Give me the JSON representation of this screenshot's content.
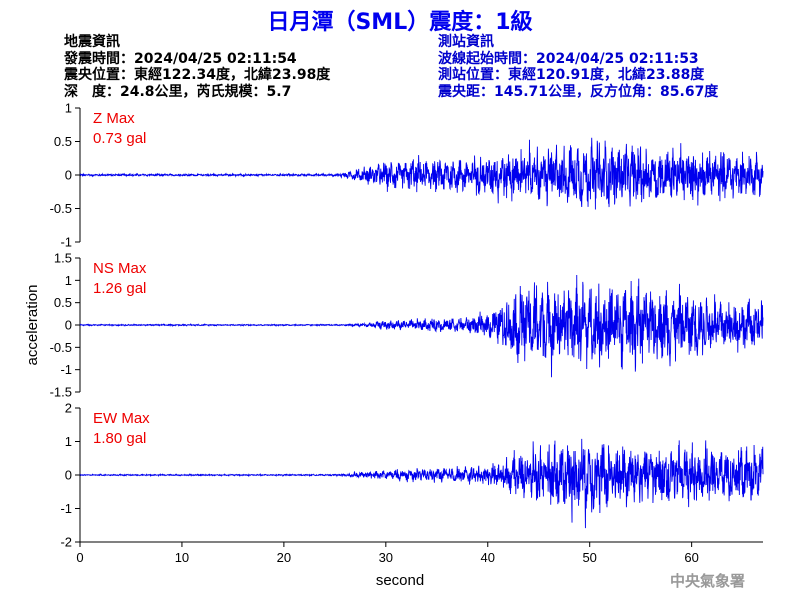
{
  "title": "日月潭（SML）震度：1級",
  "event_info": {
    "heading": "地震資訊",
    "origin_time": "發震時間：2024/04/25 02:11:54",
    "epicenter": "震央位置：東經122.34度，北緯23.98度",
    "depth_magnitude": "深　度：24.8公里，芮氏規模：5.7"
  },
  "station_info": {
    "heading": "測站資訊",
    "wave_start": "波線起始時間：2024/04/25 02:11:53",
    "location": "測站位置：東經120.91度，北緯23.88度",
    "distance_azimuth": "震央距：145.71公里，反方位角：85.67度"
  },
  "colors": {
    "trace": "#0000ee",
    "max_label": "#ee0000",
    "title": "#0000ee",
    "axis": "#000000"
  },
  "credit": "中央氣象署",
  "chart_data": {
    "type": "line",
    "xlabel": "second",
    "ylabel": "acceleration",
    "xlim": [
      0,
      67
    ],
    "xticks": [
      0,
      10,
      20,
      30,
      40,
      50,
      60
    ],
    "panels": [
      {
        "component": "Z",
        "max_label": "Z Max",
        "max_value": "0.73 gal",
        "ylim": [
          -1,
          1
        ],
        "yticks": [
          -1,
          -0.5,
          0,
          0.5,
          1
        ],
        "envelope": [
          {
            "t": 0,
            "amp": 0.015
          },
          {
            "t": 25,
            "amp": 0.015
          },
          {
            "t": 26,
            "amp": 0.05
          },
          {
            "t": 28,
            "amp": 0.12
          },
          {
            "t": 30,
            "amp": 0.22
          },
          {
            "t": 35,
            "amp": 0.25
          },
          {
            "t": 40,
            "amp": 0.3
          },
          {
            "t": 43,
            "amp": 0.4
          },
          {
            "t": 47,
            "amp": 0.45
          },
          {
            "t": 50,
            "amp": 0.5
          },
          {
            "t": 53,
            "amp": 0.5
          },
          {
            "t": 58,
            "amp": 0.42
          },
          {
            "t": 63,
            "amp": 0.38
          },
          {
            "t": 67,
            "amp": 0.3
          }
        ]
      },
      {
        "component": "NS",
        "max_label": "NS Max",
        "max_value": "1.26 gal",
        "ylim": [
          -1.5,
          1.5
        ],
        "yticks": [
          -1.5,
          -1,
          -0.5,
          0,
          0.5,
          1,
          1.5
        ],
        "envelope": [
          {
            "t": 0,
            "amp": 0.015
          },
          {
            "t": 26,
            "amp": 0.015
          },
          {
            "t": 27,
            "amp": 0.03
          },
          {
            "t": 30,
            "amp": 0.1
          },
          {
            "t": 35,
            "amp": 0.15
          },
          {
            "t": 38,
            "amp": 0.18
          },
          {
            "t": 40,
            "amp": 0.3
          },
          {
            "t": 42,
            "amp": 0.6
          },
          {
            "t": 43,
            "amp": 1.0
          },
          {
            "t": 47,
            "amp": 0.9
          },
          {
            "t": 51,
            "amp": 0.95
          },
          {
            "t": 55,
            "amp": 0.9
          },
          {
            "t": 60,
            "amp": 0.7
          },
          {
            "t": 67,
            "amp": 0.55
          }
        ]
      },
      {
        "component": "EW",
        "max_label": "EW Max",
        "max_value": "1.80 gal",
        "ylim": [
          -2,
          2
        ],
        "yticks": [
          -2,
          -1,
          0,
          1,
          2
        ],
        "envelope": [
          {
            "t": 0,
            "amp": 0.02
          },
          {
            "t": 25,
            "amp": 0.02
          },
          {
            "t": 26,
            "amp": 0.06
          },
          {
            "t": 30,
            "amp": 0.15
          },
          {
            "t": 35,
            "amp": 0.22
          },
          {
            "t": 40,
            "amp": 0.3
          },
          {
            "t": 42,
            "amp": 0.5
          },
          {
            "t": 44,
            "amp": 0.8
          },
          {
            "t": 47,
            "amp": 0.9
          },
          {
            "t": 49,
            "amp": 1.3
          },
          {
            "t": 52,
            "amp": 1.0
          },
          {
            "t": 57,
            "amp": 0.9
          },
          {
            "t": 63,
            "amp": 0.85
          },
          {
            "t": 67,
            "amp": 0.8
          }
        ]
      }
    ]
  }
}
